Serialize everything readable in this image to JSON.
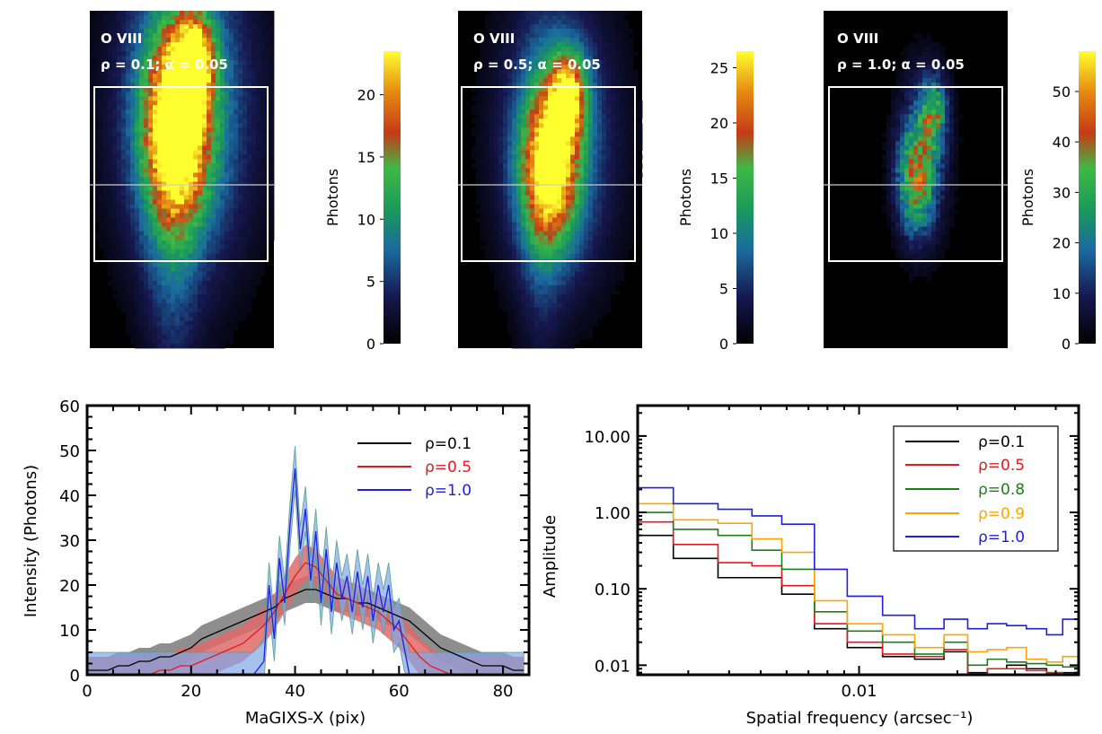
{
  "colors": {
    "black": "#000000",
    "red": "#e31a1c",
    "green": "#1a7f1a",
    "orange": "#ffa500",
    "blue": "#1f1fdd",
    "band_black": "#7a7a7a",
    "band_red": "#e06a6a",
    "band_blue": "#7fa7e8",
    "band_blue_edge": "#5aa08a",
    "box": "#ffffff",
    "cut_line": "#c8c8c8"
  },
  "chart_data": [
    {
      "type": "heatmap",
      "id": "img1",
      "labels": [
        "O VIII",
        "ρ = 0.1; α = 0.05"
      ],
      "colorbar": {
        "label": "Photons",
        "ticks": [
          0,
          5,
          10,
          15,
          20
        ],
        "range": [
          0,
          23.5
        ]
      },
      "blobs": [
        {
          "x": 0.47,
          "y": 0.36,
          "sx": 0.12,
          "sy": 0.18,
          "amp": 0.85
        },
        {
          "x": 0.57,
          "y": 0.15,
          "sx": 0.07,
          "sy": 0.09,
          "amp": 0.75
        },
        {
          "x": 0.52,
          "y": 0.28,
          "sx": 0.25,
          "sy": 0.35,
          "amp": 0.45
        },
        {
          "x": 0.45,
          "y": 0.55,
          "sx": 0.1,
          "sy": 0.45,
          "amp": 0.2
        }
      ],
      "noise": 0.12
    },
    {
      "type": "heatmap",
      "id": "img2",
      "labels": [
        "O VIII",
        "ρ = 0.5; α = 0.05"
      ],
      "colorbar": {
        "label": "Photons",
        "ticks": [
          0,
          5,
          10,
          15,
          20,
          25
        ],
        "range": [
          0,
          26.5
        ]
      },
      "blobs": [
        {
          "x": 0.5,
          "y": 0.47,
          "sx": 0.11,
          "sy": 0.16,
          "amp": 0.8
        },
        {
          "x": 0.6,
          "y": 0.25,
          "sx": 0.07,
          "sy": 0.09,
          "amp": 0.7
        },
        {
          "x": 0.54,
          "y": 0.38,
          "sx": 0.22,
          "sy": 0.3,
          "amp": 0.35
        },
        {
          "x": 0.45,
          "y": 0.6,
          "sx": 0.08,
          "sy": 0.4,
          "amp": 0.12
        }
      ],
      "noise": 0.1
    },
    {
      "type": "heatmap",
      "id": "img3",
      "labels": [
        "O VIII",
        "ρ = 1.0; α = 0.05"
      ],
      "colorbar": {
        "label": "Photons",
        "ticks": [
          0,
          10,
          20,
          30,
          40,
          50
        ],
        "range": [
          0,
          58
        ]
      },
      "blobs": [
        {
          "x": 0.5,
          "y": 0.5,
          "sx": 0.07,
          "sy": 0.11,
          "amp": 0.5
        },
        {
          "x": 0.6,
          "y": 0.3,
          "sx": 0.05,
          "sy": 0.07,
          "amp": 0.45
        },
        {
          "x": 0.54,
          "y": 0.42,
          "sx": 0.1,
          "sy": 0.18,
          "amp": 0.25
        }
      ],
      "noise": 0.25
    },
    {
      "type": "line",
      "id": "profile",
      "xlabel": "MaGIXS-X (pix)",
      "ylabel": "Intensity (Photons)",
      "xlim": [
        0,
        85
      ],
      "ylim": [
        0,
        60
      ],
      "xticks": [
        0,
        20,
        40,
        60,
        80
      ],
      "yticks": [
        0,
        10,
        20,
        30,
        40,
        50,
        60
      ],
      "series": [
        {
          "name": "ρ=0.1",
          "color_key": "black",
          "x": [
            0,
            2,
            4,
            6,
            8,
            10,
            12,
            14,
            16,
            18,
            20,
            22,
            24,
            26,
            28,
            30,
            32,
            34,
            36,
            38,
            40,
            42,
            44,
            46,
            48,
            50,
            52,
            54,
            56,
            58,
            60,
            62,
            64,
            66,
            68,
            70,
            72,
            74,
            76,
            78,
            80,
            82,
            84
          ],
          "y": [
            1,
            1,
            1,
            2,
            2,
            3,
            3,
            4,
            4,
            5,
            6,
            8,
            9,
            10,
            11,
            12,
            13,
            14,
            15,
            17,
            18,
            19,
            19,
            18,
            17,
            17,
            16,
            16,
            15,
            14,
            13,
            12,
            10,
            8,
            6,
            5,
            4,
            3,
            2,
            2,
            2,
            1,
            1
          ],
          "err": 3
        },
        {
          "name": "ρ=0.5",
          "color_key": "red",
          "x": [
            0,
            2,
            4,
            6,
            8,
            10,
            12,
            14,
            16,
            18,
            20,
            22,
            24,
            26,
            28,
            30,
            32,
            34,
            36,
            38,
            40,
            42,
            44,
            46,
            48,
            50,
            52,
            54,
            56,
            58,
            60,
            62,
            64,
            66,
            68,
            70,
            72,
            74,
            76,
            78,
            80,
            82,
            84
          ],
          "y": [
            0,
            0,
            0,
            0,
            0,
            0,
            0,
            1,
            1,
            2,
            2,
            3,
            4,
            5,
            6,
            7,
            9,
            11,
            14,
            18,
            22,
            25,
            24,
            21,
            18,
            17,
            16,
            15,
            14,
            12,
            10,
            7,
            4,
            2,
            1,
            0,
            0,
            0,
            0,
            0,
            0,
            0,
            0
          ],
          "err": 4
        },
        {
          "name": "ρ=1.0",
          "color_key": "blue",
          "x": [
            0,
            2,
            4,
            6,
            8,
            10,
            12,
            14,
            16,
            18,
            20,
            22,
            24,
            26,
            28,
            30,
            32,
            34,
            35,
            36,
            37,
            38,
            39,
            40,
            41,
            42,
            43,
            44,
            45,
            46,
            47,
            48,
            49,
            50,
            51,
            52,
            53,
            54,
            55,
            56,
            57,
            58,
            59,
            60,
            61,
            62,
            64,
            66,
            68,
            70,
            72,
            74,
            76,
            78,
            80,
            82,
            84
          ],
          "y": [
            0,
            0,
            0,
            0,
            0,
            0,
            0,
            0,
            0,
            0,
            0,
            0,
            0,
            0,
            0,
            0,
            0,
            3,
            20,
            8,
            26,
            16,
            33,
            46,
            28,
            37,
            21,
            32,
            16,
            28,
            14,
            25,
            17,
            22,
            14,
            23,
            15,
            22,
            12,
            20,
            14,
            20,
            10,
            12,
            6,
            0,
            0,
            0,
            0,
            0,
            0,
            0,
            0,
            0,
            0,
            0,
            0
          ],
          "err": 5
        }
      ]
    },
    {
      "type": "line",
      "id": "power",
      "xlabel": "Spatial frequency (arcsec⁻¹)",
      "ylabel": "Amplitude",
      "xscale": "log",
      "yscale": "log",
      "xlim": [
        0.0021,
        0.047
      ],
      "ylim": [
        0.0075,
        25
      ],
      "xticks": [
        0.01
      ],
      "xtick_labels": [
        "0.01"
      ],
      "yticks": [
        0.01,
        0.1,
        1,
        10
      ],
      "ytick_labels": [
        "0.01",
        "0.10",
        "1.00",
        "10.00"
      ],
      "edges": [
        0.0021,
        0.0027,
        0.0037,
        0.0047,
        0.0058,
        0.0073,
        0.0092,
        0.0118,
        0.0148,
        0.0182,
        0.0215,
        0.0247,
        0.0283,
        0.0325,
        0.0375,
        0.042,
        0.047
      ],
      "series": [
        {
          "name": "ρ=0.1",
          "color_key": "black",
          "values": [
            0.5,
            0.25,
            0.14,
            0.14,
            0.085,
            0.03,
            0.017,
            0.013,
            0.012,
            0.015,
            0.008,
            0.009,
            0.01,
            0.009,
            0.008,
            0.008
          ]
        },
        {
          "name": "ρ=0.5",
          "color_key": "red",
          "values": [
            0.75,
            0.38,
            0.22,
            0.2,
            0.11,
            0.035,
            0.02,
            0.014,
            0.013,
            0.016,
            0.007,
            0.009,
            0.009,
            0.0085,
            0.008,
            0.007
          ]
        },
        {
          "name": "ρ=0.8",
          "color_key": "green",
          "values": [
            1.0,
            0.6,
            0.5,
            0.32,
            0.18,
            0.05,
            0.028,
            0.02,
            0.014,
            0.02,
            0.01,
            0.012,
            0.011,
            0.0105,
            0.01,
            0.0095
          ]
        },
        {
          "name": "ρ=0.9",
          "color_key": "orange",
          "values": [
            1.3,
            0.8,
            0.72,
            0.45,
            0.3,
            0.07,
            0.035,
            0.025,
            0.017,
            0.025,
            0.015,
            0.016,
            0.017,
            0.012,
            0.011,
            0.013
          ]
        },
        {
          "name": "ρ=1.0",
          "color_key": "blue",
          "values": [
            2.1,
            1.3,
            1.1,
            0.9,
            0.7,
            0.18,
            0.08,
            0.045,
            0.03,
            0.04,
            0.03,
            0.035,
            0.033,
            0.03,
            0.025,
            0.04
          ]
        }
      ]
    }
  ]
}
